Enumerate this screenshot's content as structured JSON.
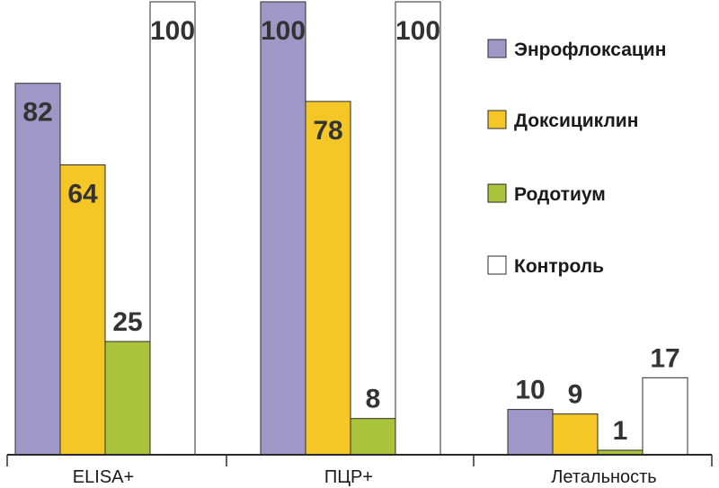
{
  "chart_data": {
    "type": "bar",
    "title": "",
    "xlabel": "",
    "ylabel": "",
    "ylim": [
      0,
      100
    ],
    "grid": false,
    "legend_position": "top-right",
    "categories": [
      "ELISA+",
      "ПЦР+",
      "Летальность"
    ],
    "series": [
      {
        "name": "Энрофлоксацин",
        "color": "#9f98c7",
        "values": [
          82,
          100,
          10
        ]
      },
      {
        "name": "Доксициклин",
        "color": "#f5c726",
        "values": [
          64,
          78,
          9
        ]
      },
      {
        "name": "Родотиум",
        "color": "#a9c43b",
        "values": [
          25,
          8,
          1
        ]
      },
      {
        "name": "Контроль",
        "color": "#ffffff",
        "values": [
          100,
          100,
          17
        ]
      }
    ]
  }
}
